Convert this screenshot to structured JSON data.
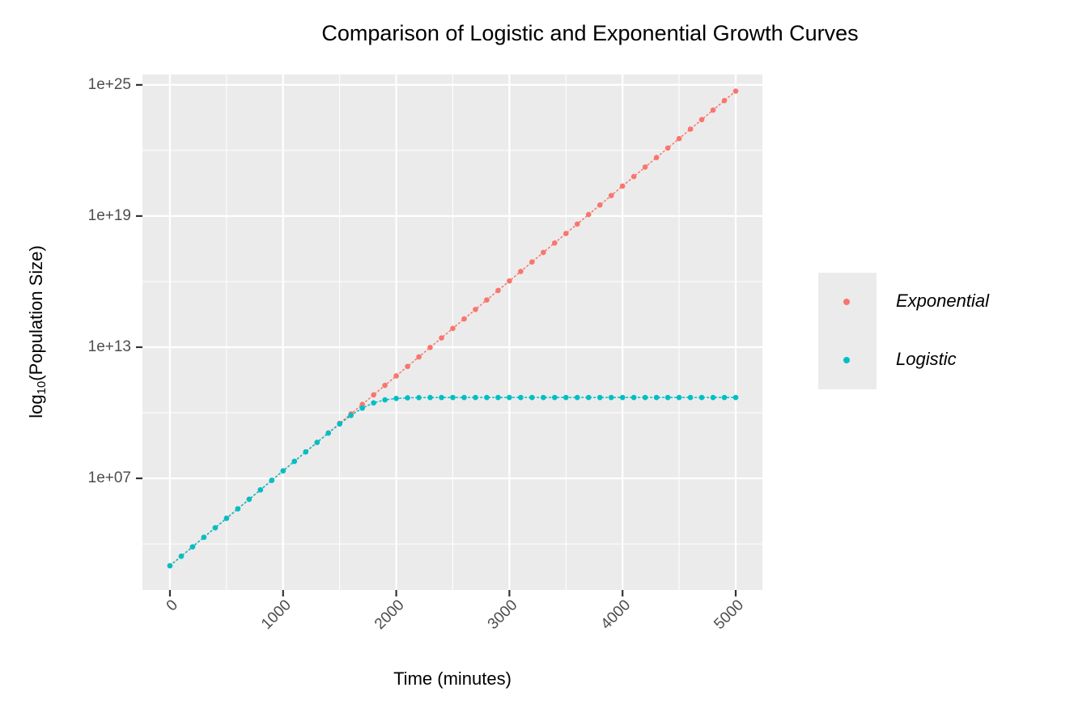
{
  "chart_data": {
    "type": "scatter",
    "title": "Comparison of Logistic and Exponential Growth Curves",
    "xlabel": "Time (minutes)",
    "ylabel_parts": [
      "log",
      "10",
      "(Population Size)"
    ],
    "log_y": true,
    "grid": true,
    "legend_position": "right",
    "x": [
      0,
      100,
      200,
      300,
      400,
      500,
      600,
      700,
      800,
      900,
      1000,
      1100,
      1200,
      1300,
      1400,
      1500,
      1600,
      1700,
      1800,
      1900,
      2000,
      2100,
      2200,
      2300,
      2400,
      2500,
      2600,
      2700,
      2800,
      2900,
      3000,
      3100,
      3200,
      3300,
      3400,
      3500,
      3600,
      3700,
      3800,
      3900,
      4000,
      4100,
      4200,
      4300,
      4400,
      4500,
      4600,
      4700,
      4800,
      4900,
      5000
    ],
    "series": [
      {
        "name": "Exponential",
        "color": "#F8766D",
        "values": [
          1000.0,
          2720.0,
          7390.0,
          20100.0,
          54600.0,
          148000.0,
          403000.0,
          1100000.0,
          2980000.0,
          8100000.0,
          22000000.0,
          59900000.0,
          163000000.0,
          442000000.0,
          1200000000.0,
          3270000000.0,
          8890000000.0,
          24200000000.0,
          65700000000.0,
          179000000000.0,
          485000000000.0,
          1320000000000.0,
          3590000000000.0,
          9750000000000.0,
          26500000000000.0,
          72000000000000.0,
          196000000000000.0,
          532000000000000.0,
          1450000000000000.0,
          3930000000000000.0,
          1.07e+16,
          2.91e+16,
          7.9e+16,
          2.15e+17,
          5.84e+17,
          1.59e+18,
          4.31e+18,
          1.17e+19,
          3.19e+19,
          8.66e+19,
          2.35e+20,
          6.4e+20,
          1.74e+21,
          4.73e+21,
          1.29e+22,
          3.49e+22,
          9.5e+22,
          2.58e+23,
          7.02e+23,
          1.91e+24,
          5.19e+24
        ]
      },
      {
        "name": "Logistic",
        "color": "#00BFC4",
        "values": [
          1000.0,
          2720.0,
          7390.0,
          20100.0,
          54600.0,
          148000.0,
          403000.0,
          1100000.0,
          2980000.0,
          8100000.0,
          22000000.0,
          59900000.0,
          162000000.0,
          438000000.0,
          1170000000.0,
          3070000000.0,
          7550000000.0,
          16300000000.0,
          28400000000.0,
          39100000000.0,
          45300000000.0,
          48200000000.0,
          49300000000.0,
          49700000000.0,
          49900000000.0,
          50000000000.0,
          50000000000.0,
          50000000000.0,
          50000000000.0,
          50000000000.0,
          50000000000.0,
          50000000000.0,
          50000000000.0,
          50000000000.0,
          50000000000.0,
          50000000000.0,
          50000000000.0,
          50000000000.0,
          50000000000.0,
          50000000000.0,
          50000000000.0,
          50000000000.0,
          50000000000.0,
          50000000000.0,
          50000000000.0,
          50000000000.0,
          50000000000.0,
          50000000000.0,
          50000000000.0,
          50000000000.0,
          50000000000.0
        ]
      }
    ],
    "xlim": [
      -243,
      5236
    ],
    "xticks": [
      0,
      1000,
      2000,
      3000,
      4000,
      5000
    ],
    "x_minor_grid": [
      500,
      1500,
      2500,
      3500,
      4500
    ],
    "ylim": [
      78,
      3e+25
    ],
    "yticks": [
      {
        "value": 10000000.0,
        "label": "1e+07"
      },
      {
        "value": 10000000000000.0,
        "label": "1e+13"
      },
      {
        "value": 1e+19,
        "label": "1e+19"
      },
      {
        "value": 1e+25,
        "label": "1e+25"
      }
    ],
    "y_minor_grid": [
      10000.0,
      10000000000.0,
      1e+16,
      1e+22
    ]
  }
}
